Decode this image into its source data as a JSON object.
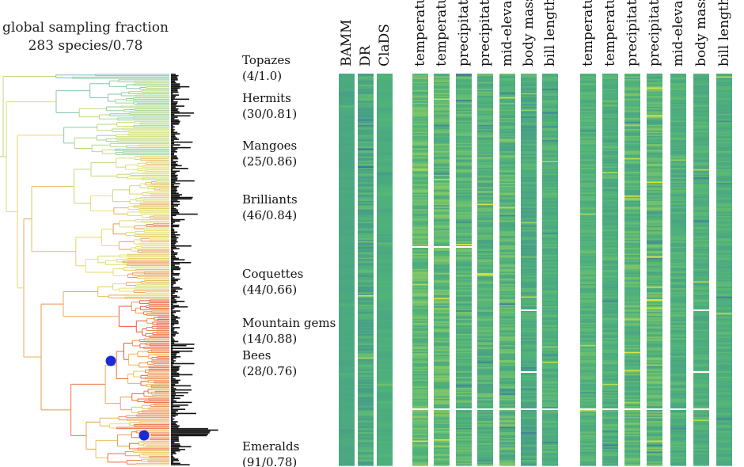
{
  "figure": {
    "sampling_title": "global sampling fraction",
    "sampling_value": "283 species/0.78"
  },
  "clades": [
    {
      "name": "Topazes",
      "count": "(4/1.0)"
    },
    {
      "name": "Hermits",
      "count": "(30/0.81)"
    },
    {
      "name": "Mangoes",
      "count": "(25/0.86)"
    },
    {
      "name": "Brilliants",
      "count": "(46/0.84)"
    },
    {
      "name": "Coquettes",
      "count": "(44/0.66)"
    },
    {
      "name": "Mountain gems",
      "count": "(14/0.88)"
    },
    {
      "name": "Bees",
      "count": "(28/0.76)"
    },
    {
      "name": "Emeralds",
      "count": "(91/0.78)"
    }
  ],
  "chart_data": {
    "type": "heatmap",
    "description_free": true,
    "n_tips": 283,
    "rate_columns": [
      "BAMM",
      "DR",
      "ClaDS"
    ],
    "trait_group_1": [
      "temperature",
      "temperature",
      "precipitation",
      "precipitation",
      "mid-elevation",
      "body mass",
      "bill length"
    ],
    "trait_group_2": [
      "temperature",
      "temperature",
      "precipitation",
      "precipitation",
      "mid-elevation",
      "body mass",
      "bill length"
    ],
    "colormap": {
      "low": "#3a6ea5",
      "mid": "#4fb37a",
      "high": "#f0f040"
    },
    "tree_edge_colors": {
      "slow": "#7ab0e0",
      "fast": "#e85a3a"
    },
    "highlighted_nodes": 2,
    "marker_color": "#1a2bd6"
  }
}
